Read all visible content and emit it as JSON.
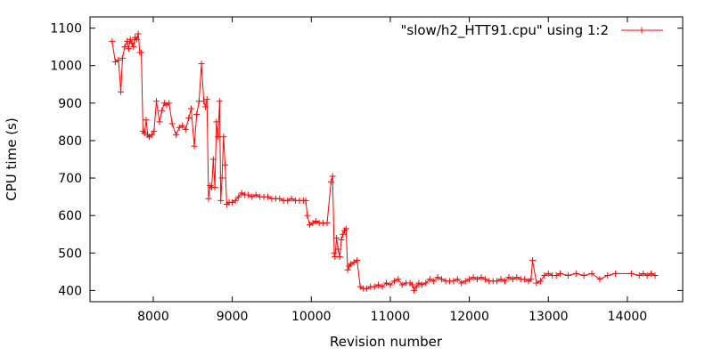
{
  "chart_data": {
    "type": "line",
    "title": "",
    "xlabel": "Revision number",
    "ylabel": "CPU time (s)",
    "xlim": [
      7200,
      14700
    ],
    "ylim": [
      370,
      1130
    ],
    "x_ticks": [
      8000,
      9000,
      10000,
      11000,
      12000,
      13000,
      14000
    ],
    "y_ticks": [
      400,
      500,
      600,
      700,
      800,
      900,
      1000,
      1100
    ],
    "grid": false,
    "legend_position": "top-right",
    "line_color": "#ff0000",
    "series": [
      {
        "name": "\"slow/h2_HTT91.cpu\" using 1:2",
        "marker": "plus",
        "x": [
          7480,
          7520,
          7560,
          7590,
          7610,
          7640,
          7670,
          7690,
          7710,
          7730,
          7750,
          7770,
          7790,
          7810,
          7830,
          7850,
          7870,
          7890,
          7910,
          7930,
          7950,
          7980,
          8010,
          8040,
          8080,
          8110,
          8140,
          8170,
          8200,
          8240,
          8290,
          8330,
          8370,
          8410,
          8450,
          8480,
          8520,
          8550,
          8580,
          8610,
          8640,
          8660,
          8680,
          8700,
          8720,
          8740,
          8760,
          8780,
          8800,
          8820,
          8840,
          8855,
          8870,
          8890,
          8910,
          8930,
          8960,
          9000,
          9040,
          9080,
          9120,
          9160,
          9200,
          9250,
          9300,
          9350,
          9400,
          9450,
          9500,
          9550,
          9600,
          9650,
          9700,
          9750,
          9800,
          9850,
          9900,
          9930,
          9950,
          9980,
          10020,
          10060,
          10100,
          10150,
          10200,
          10250,
          10270,
          10290,
          10300,
          10320,
          10340,
          10360,
          10380,
          10400,
          10420,
          10440,
          10460,
          10480,
          10500,
          10540,
          10580,
          10620,
          10660,
          10700,
          10750,
          10800,
          10850,
          10900,
          10950,
          11000,
          11050,
          11100,
          11150,
          11200,
          11250,
          11280,
          11300,
          11330,
          11360,
          11400,
          11450,
          11500,
          11550,
          11600,
          11650,
          11700,
          11750,
          11800,
          11850,
          11900,
          11950,
          12000,
          12050,
          12100,
          12150,
          12200,
          12250,
          12300,
          12350,
          12400,
          12450,
          12500,
          12550,
          12600,
          12650,
          12700,
          12750,
          12780,
          12800,
          12850,
          12900,
          12950,
          13000,
          13050,
          13100,
          13150,
          13250,
          13350,
          13450,
          13550,
          13650,
          13750,
          13850,
          14050,
          14150,
          14200,
          14250,
          14300,
          14350
        ],
        "y": [
          1065,
          1010,
          1015,
          930,
          1020,
          1050,
          1065,
          1045,
          1070,
          1060,
          1050,
          1075,
          1070,
          1085,
          1035,
          1035,
          825,
          820,
          855,
          815,
          810,
          815,
          825,
          905,
          850,
          880,
          900,
          895,
          900,
          845,
          815,
          835,
          840,
          830,
          860,
          885,
          785,
          870,
          905,
          1005,
          905,
          890,
          910,
          645,
          680,
          675,
          750,
          675,
          850,
          810,
          905,
          640,
          700,
          810,
          735,
          630,
          635,
          635,
          640,
          650,
          660,
          655,
          655,
          650,
          655,
          650,
          650,
          650,
          645,
          645,
          645,
          640,
          640,
          645,
          640,
          640,
          640,
          640,
          600,
          575,
          580,
          585,
          580,
          580,
          580,
          690,
          705,
          500,
          490,
          540,
          510,
          490,
          535,
          550,
          560,
          565,
          455,
          465,
          470,
          475,
          480,
          410,
          405,
          405,
          410,
          410,
          415,
          410,
          420,
          415,
          425,
          430,
          415,
          420,
          420,
          415,
          400,
          410,
          420,
          415,
          420,
          430,
          425,
          435,
          430,
          425,
          425,
          425,
          430,
          420,
          425,
          430,
          435,
          430,
          435,
          430,
          425,
          425,
          425,
          430,
          425,
          435,
          430,
          435,
          430,
          430,
          425,
          430,
          480,
          420,
          425,
          440,
          445,
          440,
          440,
          445,
          440,
          445,
          440,
          445,
          430,
          440,
          445,
          445,
          440,
          445,
          440,
          445,
          440
        ]
      }
    ]
  }
}
